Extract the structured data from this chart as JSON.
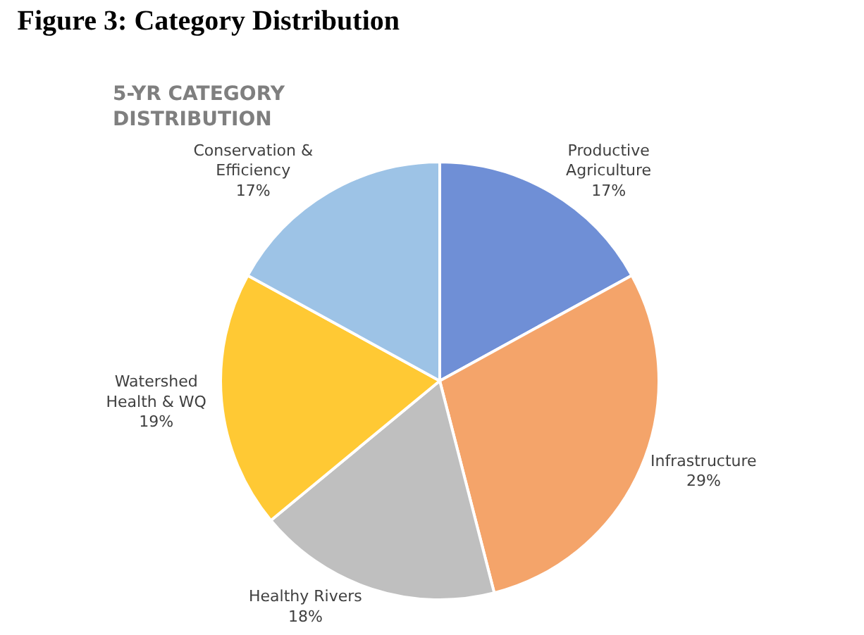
{
  "chart_data": {
    "type": "pie",
    "title": "Figure 3: Category Distribution",
    "subtitle": "5-YR CATEGORY DISTRIBUTION",
    "categories": [
      "Productive Agriculture",
      "Infrastructure",
      "Healthy Rivers",
      "Watershed Health & WQ",
      "Conservation & Efficiency"
    ],
    "values": [
      17,
      29,
      18,
      19,
      17
    ],
    "value_labels": [
      "17%",
      "29%",
      "18%",
      "19%",
      "17%"
    ],
    "colors": [
      "#6f8fd6",
      "#f4a46a",
      "#bfbfbf",
      "#ffc934",
      "#9dc3e6"
    ],
    "legend": false
  }
}
